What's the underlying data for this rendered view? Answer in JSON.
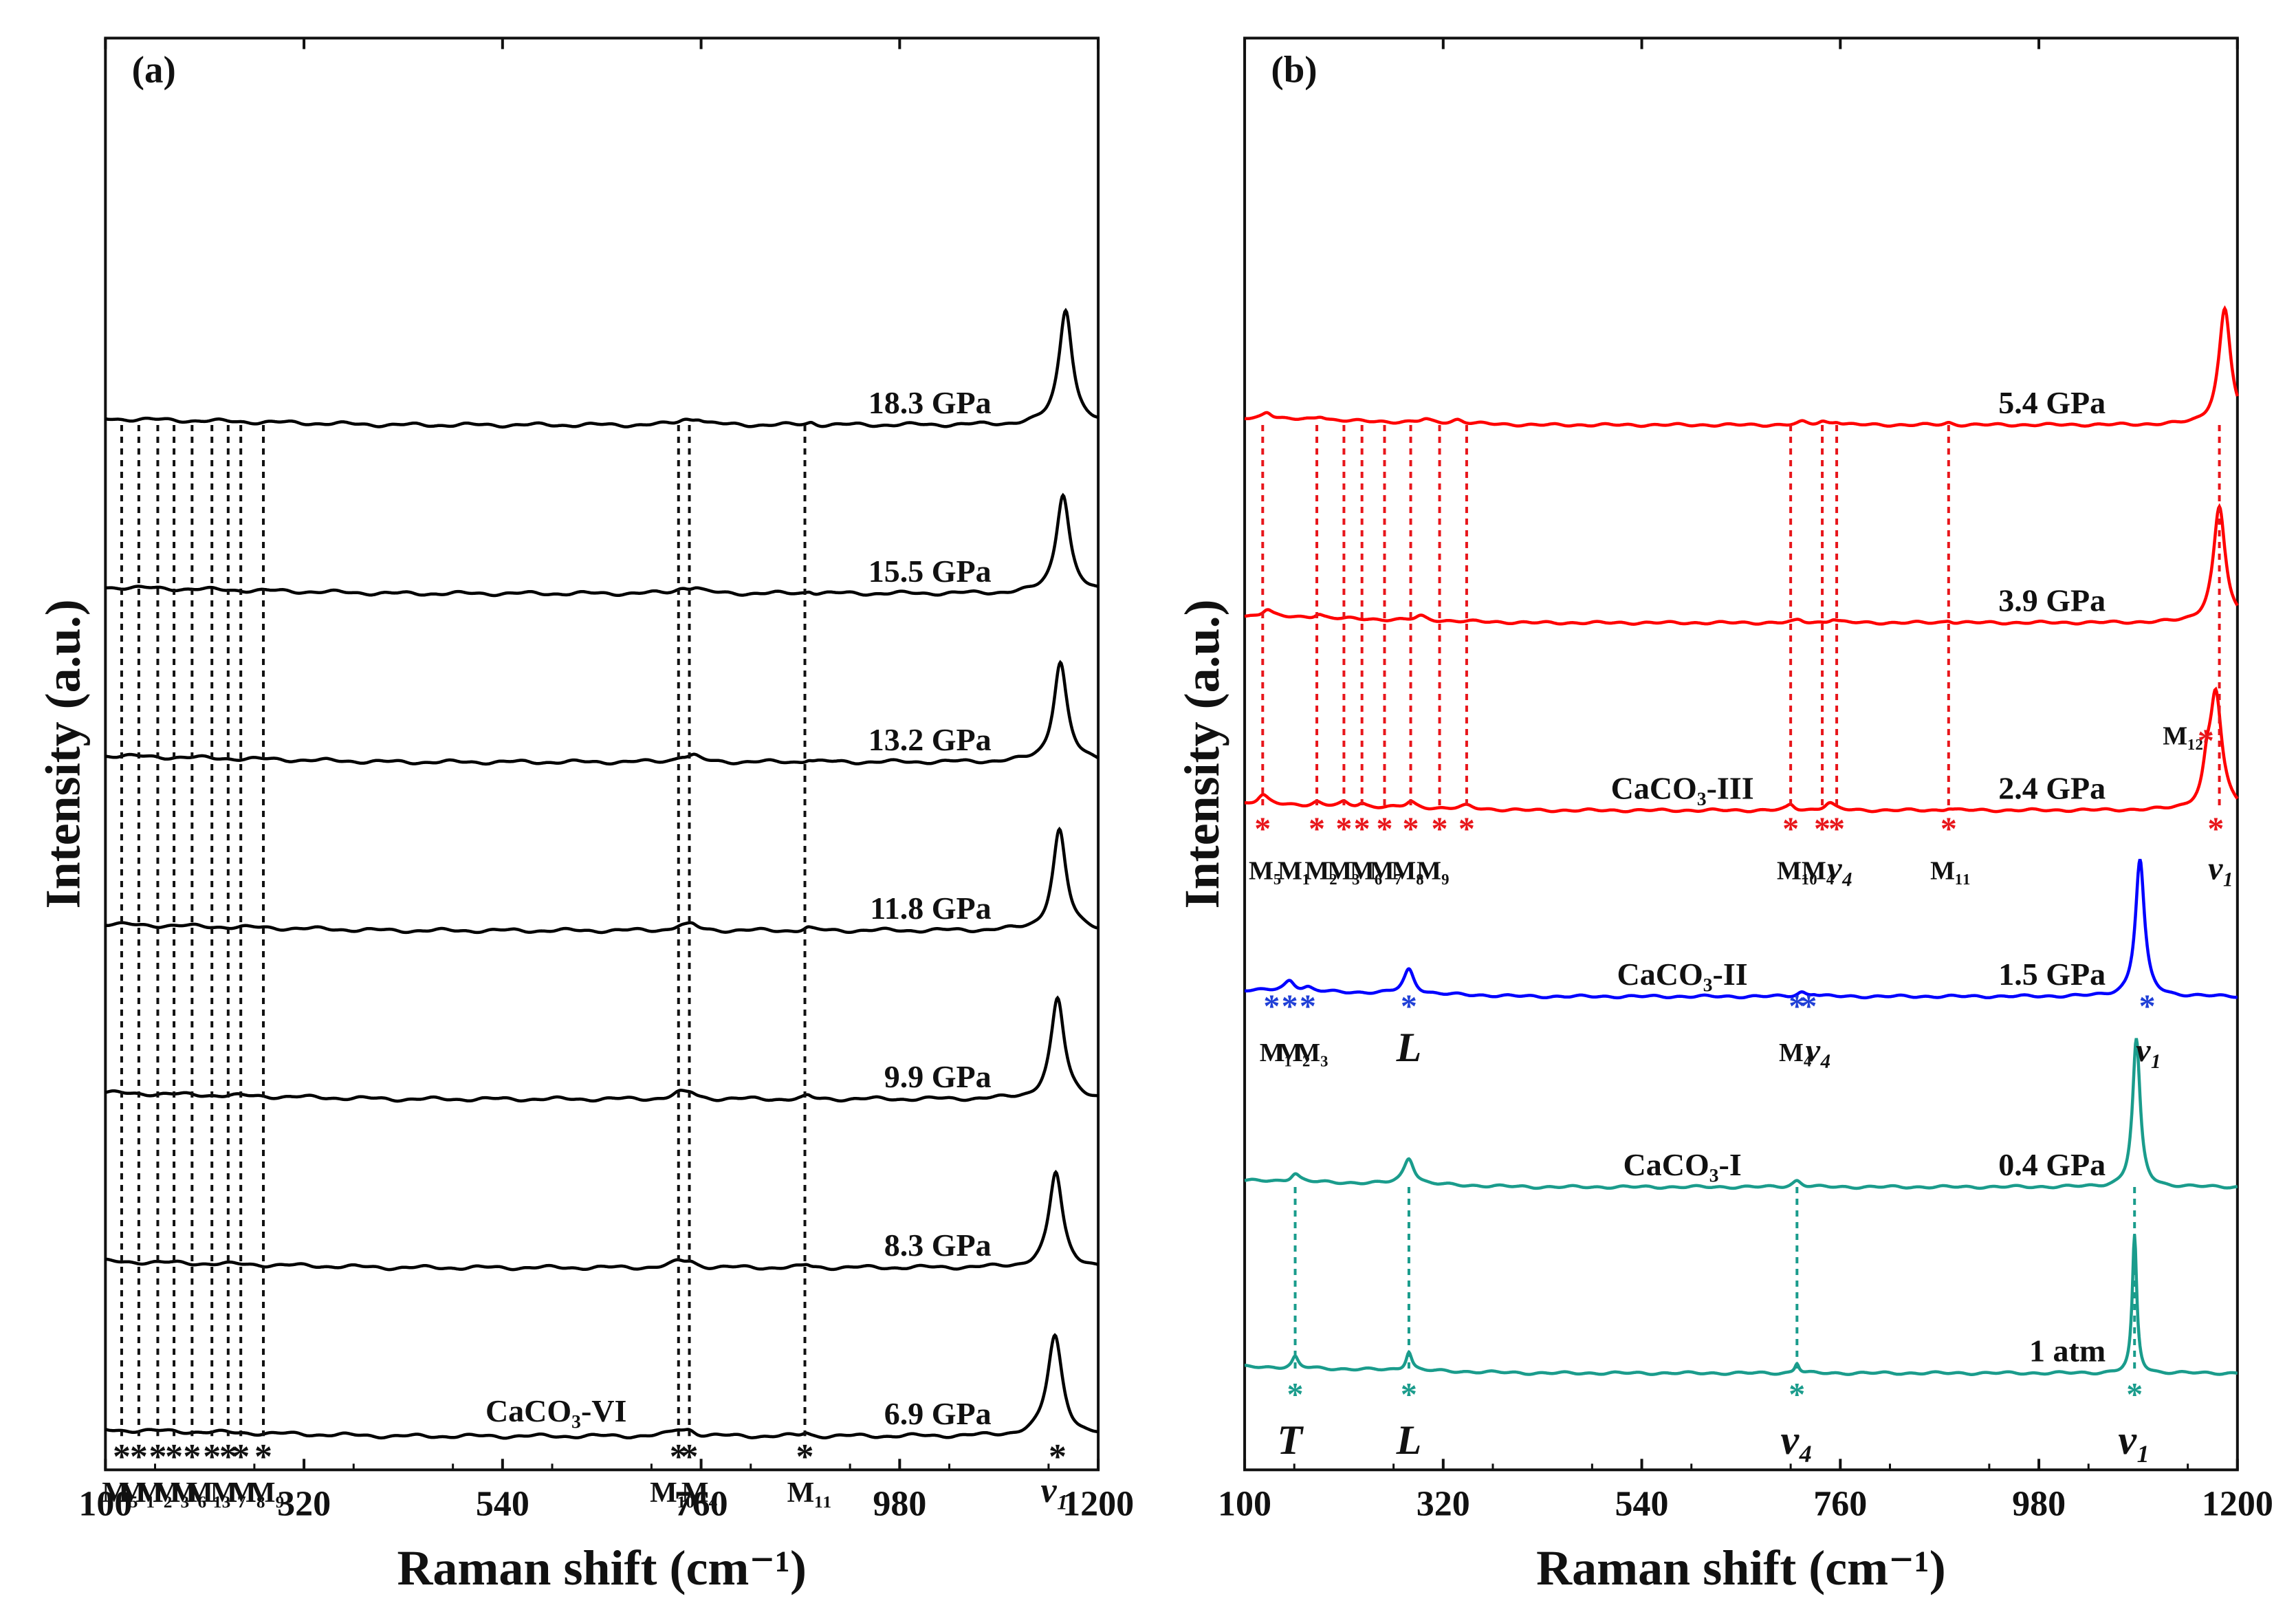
{
  "chart_data": [
    {
      "type": "line",
      "panel_label": "(a)",
      "xlabel": "Raman shift (cm⁻¹)",
      "ylabel": "Intensity (a.u.)",
      "xlim": [
        100,
        1200
      ],
      "xticks": [
        "100",
        "320",
        "540",
        "760",
        "980",
        "1200"
      ],
      "phase_label": "CaCO₃-VI",
      "color": "#000000",
      "series": [
        {
          "name": "18.3 GPa",
          "pressure": 18.3,
          "peaks": [
            {
              "x": 1164,
              "height": 22,
              "width": 9
            },
            {
              "x": 742,
              "height": 0.9,
              "width": 10
            },
            {
              "x": 757,
              "height": 1.0,
              "width": 8
            },
            {
              "x": 882,
              "height": 0.5,
              "width": 5
            }
          ]
        },
        {
          "name": "15.5 GPa",
          "pressure": 15.5,
          "peaks": [
            {
              "x": 1161,
              "height": 19,
              "width": 9
            },
            {
              "x": 740,
              "height": 0.9,
              "width": 10
            },
            {
              "x": 754,
              "height": 0.9,
              "width": 8
            },
            {
              "x": 880,
              "height": 0.5,
              "width": 5
            }
          ]
        },
        {
          "name": "13.2 GPa",
          "pressure": 13.2,
          "peaks": [
            {
              "x": 1158,
              "height": 19,
              "width": 9
            },
            {
              "x": 738,
              "height": 0.9,
              "width": 10
            },
            {
              "x": 752,
              "height": 0.9,
              "width": 8
            },
            {
              "x": 879,
              "height": 0.5,
              "width": 5
            }
          ]
        },
        {
          "name": "11.8 GPa",
          "pressure": 11.8,
          "peaks": [
            {
              "x": 1157,
              "height": 19,
              "width": 9
            },
            {
              "x": 737,
              "height": 0.8,
              "width": 10
            },
            {
              "x": 750,
              "height": 0.8,
              "width": 8
            },
            {
              "x": 878,
              "height": 0.5,
              "width": 5
            }
          ]
        },
        {
          "name": "9.9 GPa",
          "pressure": 9.9,
          "peaks": [
            {
              "x": 1155,
              "height": 19,
              "width": 9
            },
            {
              "x": 736,
              "height": 1.0,
              "width": 10
            },
            {
              "x": 749,
              "height": 0.9,
              "width": 8
            },
            {
              "x": 878,
              "height": 0.5,
              "width": 5
            }
          ]
        },
        {
          "name": "8.3 GPa",
          "pressure": 8.3,
          "peaks": [
            {
              "x": 1153,
              "height": 18,
              "width": 9
            },
            {
              "x": 735,
              "height": 1.0,
              "width": 10
            },
            {
              "x": 748,
              "height": 0.9,
              "width": 8
            },
            {
              "x": 877,
              "height": 0.5,
              "width": 5
            }
          ]
        },
        {
          "name": "6.9 GPa",
          "pressure": 6.9,
          "peaks": [
            {
              "x": 1152,
              "height": 19,
              "width": 10
            },
            {
              "x": 734,
              "height": 1.0,
              "width": 10
            },
            {
              "x": 747,
              "height": 0.9,
              "width": 8
            },
            {
              "x": 876,
              "height": 0.6,
              "width": 5
            }
          ]
        }
      ],
      "mode_labels": [
        "M₅",
        "M₁",
        "M₂",
        "M₃",
        "M₆",
        "M₁₃",
        "M₇",
        "M₈",
        "M₉",
        "M₁₀",
        "M₄",
        "M₁₁",
        "v₁"
      ]
    },
    {
      "type": "line",
      "panel_label": "(b)",
      "xlabel": "Raman shift (cm⁻¹)",
      "ylabel": "Intensity (a.u.)",
      "xlim": [
        100,
        1200
      ],
      "xticks": [
        "100",
        "320",
        "540",
        "760",
        "980",
        "1200"
      ],
      "series": [
        {
          "name": "5.4 GPa",
          "pressure": 5.4,
          "phase": "CaCO₃-III",
          "color": "#ff0000",
          "peaks": [
            {
              "x": 1186,
              "height": 22,
              "width": 8
            },
            {
              "x": 125,
              "height": 1.4,
              "width": 7
            },
            {
              "x": 184,
              "height": 0.8,
              "width": 7
            },
            {
              "x": 300,
              "height": 0.6,
              "width": 7
            },
            {
              "x": 336,
              "height": 0.7,
              "width": 7
            },
            {
              "x": 718,
              "height": 0.5,
              "width": 6
            },
            {
              "x": 740,
              "height": 0.6,
              "width": 6
            },
            {
              "x": 756,
              "height": 0.6,
              "width": 6
            },
            {
              "x": 880,
              "height": 0.4,
              "width": 5
            }
          ]
        },
        {
          "name": "3.9 GPa",
          "pressure": 3.9,
          "phase": "CaCO₃-III",
          "color": "#ff0000",
          "peaks": [
            {
              "x": 1180,
              "height": 22,
              "width": 8
            },
            {
              "x": 125,
              "height": 1.5,
              "width": 7
            },
            {
              "x": 182,
              "height": 0.8,
              "width": 6
            },
            {
              "x": 295,
              "height": 0.8,
              "width": 7
            },
            {
              "x": 714,
              "height": 0.5,
              "width": 6
            },
            {
              "x": 752,
              "height": 0.7,
              "width": 6
            },
            {
              "x": 880,
              "height": 0.4,
              "width": 5
            }
          ]
        },
        {
          "name": "2.4 GPa",
          "pressure": 2.4,
          "phase": "CaCO₃-III",
          "color": "#ff0000",
          "peaks": [
            {
              "x": 1176,
              "height": 22,
              "width": 8
            },
            {
              "x": 1166,
              "height": 5,
              "width": 5
            },
            {
              "x": 120,
              "height": 1.8,
              "width": 7
            },
            {
              "x": 180,
              "height": 0.7,
              "width": 6
            },
            {
              "x": 210,
              "height": 0.7,
              "width": 5
            },
            {
              "x": 230,
              "height": 0.6,
              "width": 5
            },
            {
              "x": 284,
              "height": 1.1,
              "width": 6
            },
            {
              "x": 346,
              "height": 0.6,
              "width": 8
            },
            {
              "x": 705,
              "height": 1.0,
              "width": 5
            },
            {
              "x": 748,
              "height": 1.4,
              "width": 7
            },
            {
              "x": 880,
              "height": 0.4,
              "width": 5
            }
          ]
        },
        {
          "name": "1.5 GPa",
          "pressure": 1.5,
          "phase": "CaCO₃-II",
          "color": "#0000ff",
          "peaks": [
            {
              "x": 1092,
              "height": 26,
              "width": 6
            },
            {
              "x": 150,
              "height": 2.0,
              "width": 7
            },
            {
              "x": 170,
              "height": 0.7,
              "width": 6
            },
            {
              "x": 282,
              "height": 4.6,
              "width": 7
            },
            {
              "x": 717,
              "height": 0.8,
              "width": 6
            },
            {
              "x": 731,
              "height": 0.4,
              "width": 5
            }
          ]
        },
        {
          "name": "0.4 GPa",
          "pressure": 0.4,
          "phase": "CaCO₃-I",
          "color": "#1a9c8c",
          "peaks": [
            {
              "x": 1088,
              "height": 28,
              "width": 5
            },
            {
              "x": 156,
              "height": 1.6,
              "width": 6
            },
            {
              "x": 282,
              "height": 5.0,
              "width": 7
            },
            {
              "x": 712,
              "height": 1.2,
              "width": 6
            }
          ]
        },
        {
          "name": "1 atm",
          "pressure": 0.0,
          "phase": "CaCO₃-I",
          "color": "#1a9c8c",
          "peaks": [
            {
              "x": 1086,
              "height": 26,
              "width": 3
            },
            {
              "x": 156,
              "height": 2.1,
              "width": 4
            },
            {
              "x": 282,
              "height": 3.6,
              "width": 4
            },
            {
              "x": 712,
              "height": 1.9,
              "width": 3
            }
          ]
        }
      ],
      "mode_labels_III": [
        "M₅",
        "M₁",
        "M₂",
        "M₃",
        "M₆",
        "M₇",
        "M₈",
        "M₉",
        "M₁₀",
        "M₄",
        "v₄",
        "M₁₁",
        "M₁₂",
        "v₁"
      ],
      "mode_labels_II": [
        "M₁",
        "M₂",
        "M₃",
        "L",
        "M₄",
        "v₄",
        "v₁"
      ],
      "mode_labels_I": [
        "T",
        "L",
        "v₄",
        "v₁"
      ]
    }
  ]
}
